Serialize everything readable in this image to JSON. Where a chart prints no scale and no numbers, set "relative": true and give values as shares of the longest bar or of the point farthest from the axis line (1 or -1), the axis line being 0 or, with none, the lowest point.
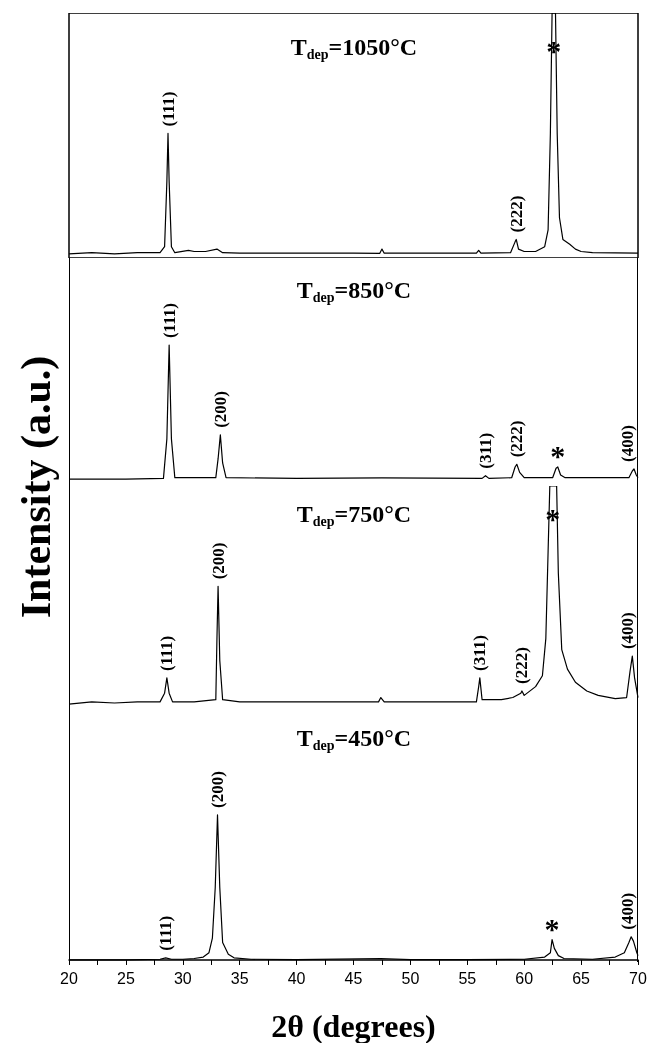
{
  "chart_data": [
    {
      "type": "line",
      "relative": true,
      "title": "T$_{dep}$=1050°C",
      "ylabel": "Intensity (a.u.)",
      "xlim": [
        20,
        70
      ],
      "tick_labels": false,
      "series": [
        {
          "color": "#000000",
          "x": [
            20,
            22,
            24,
            26,
            28,
            28.4,
            28.6,
            28.7,
            28.8,
            29.0,
            29.3,
            30.5,
            31,
            32,
            33,
            33.5,
            35,
            40,
            45,
            47.3,
            47.5,
            47.7,
            52,
            55.8,
            56,
            56.2,
            58.8,
            59.2,
            59.3,
            59.5,
            60,
            61,
            61.8,
            62.1,
            62.3,
            62.45,
            62.75,
            62.9,
            63.1,
            63.4,
            64,
            64.5,
            65,
            66,
            68,
            70
          ],
          "values": [
            0,
            0.005,
            0,
            0.005,
            0.005,
            0.03,
            0.3,
            0.5,
            0.3,
            0.03,
            0.005,
            0.015,
            0.01,
            0.01,
            0.02,
            0.005,
            0.003,
            0.003,
            0.003,
            0.002,
            0.02,
            0.003,
            0.003,
            0.003,
            0.015,
            0.003,
            0.005,
            0.05,
            0.06,
            0.02,
            0.01,
            0.01,
            0.03,
            0.1,
            0.5,
            1,
            1,
            0.5,
            0.15,
            0.06,
            0.04,
            0.02,
            0.01,
            0.005,
            0.004,
            0.003
          ]
        }
      ],
      "annotations": [
        {
          "text": "(111)",
          "x": 28.7,
          "y": 0.5
        },
        {
          "text": "(222)",
          "x": 59.3,
          "y": 0.06
        },
        {
          "text": "*",
          "x": 62.6,
          "y": 0.8
        }
      ]
    },
    {
      "type": "line",
      "relative": true,
      "title": "T$_{dep}$=850°C",
      "xlim": [
        20,
        70
      ],
      "tick_labels": false,
      "series": [
        {
          "color": "#000000",
          "x": [
            20,
            25,
            28.3,
            28.6,
            28.8,
            29.0,
            29.3,
            32.9,
            33.1,
            33.3,
            33.5,
            33.8,
            40,
            47.5,
            56.3,
            56.6,
            56.9,
            58.9,
            59.2,
            59.35,
            59.6,
            60,
            62.5,
            62.8,
            62.95,
            63.2,
            63.6,
            69.2,
            69.5,
            69.65,
            69.85,
            70
          ],
          "values": [
            0,
            0,
            0.005,
            0.3,
            1,
            0.3,
            0.01,
            0.01,
            0.15,
            0.33,
            0.12,
            0.01,
            0.005,
            0.008,
            0.005,
            0.025,
            0.005,
            0.01,
            0.09,
            0.11,
            0.05,
            0.01,
            0.01,
            0.08,
            0.09,
            0.03,
            0.01,
            0.01,
            0.06,
            0.075,
            0.03,
            0.01
          ]
        }
      ],
      "annotations": [
        {
          "text": "(111)",
          "x": 28.8,
          "y": 1
        },
        {
          "text": "(200)",
          "x": 33.3,
          "y": 0.33
        },
        {
          "text": "(311)",
          "x": 56.6,
          "y": 0.025
        },
        {
          "text": "(222)",
          "x": 59.35,
          "y": 0.11
        },
        {
          "text": "*",
          "x": 62.95,
          "y": 0.09
        },
        {
          "text": "(400)",
          "x": 69.65,
          "y": 0.075
        }
      ]
    },
    {
      "type": "line",
      "relative": true,
      "title": "T$_{dep}$=750°C",
      "xlim": [
        20,
        70
      ],
      "tick_labels": false,
      "series": [
        {
          "color": "#000000",
          "x": [
            20,
            22,
            24,
            26,
            28,
            28.4,
            28.6,
            28.8,
            29.1,
            31,
            32.9,
            33.0,
            33.1,
            33.25,
            33.5,
            35,
            40,
            45,
            47.2,
            47.4,
            47.7,
            52,
            55.8,
            56.0,
            56.1,
            56.3,
            58,
            59,
            59.7,
            59.8,
            60,
            61,
            61.6,
            61.9,
            62.1,
            62.25,
            62.85,
            63.0,
            63.3,
            63.8,
            64.5,
            65.5,
            66.5,
            68,
            69,
            69.3,
            69.5,
            69.7,
            70
          ],
          "values": [
            0,
            0.01,
            0.005,
            0.01,
            0.01,
            0.05,
            0.12,
            0.05,
            0.01,
            0.01,
            0.02,
            0.3,
            0.54,
            0.2,
            0.02,
            0.01,
            0.01,
            0.01,
            0.01,
            0.03,
            0.01,
            0.01,
            0.01,
            0.08,
            0.12,
            0.02,
            0.02,
            0.03,
            0.05,
            0.06,
            0.04,
            0.08,
            0.13,
            0.3,
            0.7,
            1,
            1,
            0.6,
            0.25,
            0.16,
            0.1,
            0.06,
            0.04,
            0.025,
            0.03,
            0.15,
            0.22,
            0.12,
            0.03
          ]
        }
      ],
      "annotations": [
        {
          "text": "(111)",
          "x": 28.6,
          "y": 0.12
        },
        {
          "text": "(200)",
          "x": 33.1,
          "y": 0.54
        },
        {
          "text": "(311)",
          "x": 56.1,
          "y": 0.12
        },
        {
          "text": "(222)",
          "x": 59.8,
          "y": 0.06
        },
        {
          "text": "*",
          "x": 62.5,
          "y": 0.8
        },
        {
          "text": "(400)",
          "x": 69.5,
          "y": 0.22
        }
      ]
    },
    {
      "type": "line",
      "relative": true,
      "title": "T$_{dep}$=450°C",
      "xlabel": "2θ (degrees)",
      "xlim": [
        20,
        70
      ],
      "tick_labels": "x",
      "xticks": [
        20,
        {
          "value": 22.5,
          "label": null
        },
        25,
        {
          "value": 27.5,
          "label": null
        },
        30,
        {
          "value": 32.5,
          "label": null
        },
        35,
        {
          "value": 37.5,
          "label": null
        },
        40,
        {
          "value": 42.5,
          "label": null
        },
        45,
        {
          "value": 47.5,
          "label": null
        },
        50,
        {
          "value": 52.5,
          "label": null
        },
        55,
        {
          "value": 57.5,
          "label": null
        },
        60,
        {
          "value": 62.5,
          "label": null
        },
        65,
        {
          "value": 67.5,
          "label": null
        },
        70
      ],
      "series": [
        {
          "color": "#000000",
          "x": [
            20,
            25,
            28,
            28.5,
            29,
            30,
            31,
            31.8,
            32.3,
            32.6,
            32.85,
            33.05,
            33.25,
            33.5,
            34,
            34.5,
            36,
            40,
            47.4,
            50,
            55,
            60,
            61.8,
            62.3,
            62.45,
            62.65,
            63,
            63.5,
            66,
            68,
            68.8,
            69.2,
            69.4,
            69.6,
            69.9,
            70
          ],
          "values": [
            0,
            0,
            0.005,
            0.015,
            0.005,
            0.005,
            0.01,
            0.02,
            0.05,
            0.15,
            0.5,
            1,
            0.5,
            0.12,
            0.04,
            0.015,
            0.005,
            0.003,
            0.01,
            0.003,
            0.003,
            0.005,
            0.02,
            0.05,
            0.14,
            0.08,
            0.03,
            0.01,
            0.005,
            0.02,
            0.05,
            0.12,
            0.16,
            0.13,
            0.05,
            0.03
          ]
        }
      ],
      "annotations": [
        {
          "text": "(111)",
          "x": 28.5,
          "y": 0.015
        },
        {
          "text": "(200)",
          "x": 33.05,
          "y": 1
        },
        {
          "text": "*",
          "x": 62.45,
          "y": 0.14
        },
        {
          "text": "(400)",
          "x": 69.4,
          "y": 0.16
        }
      ]
    }
  ]
}
